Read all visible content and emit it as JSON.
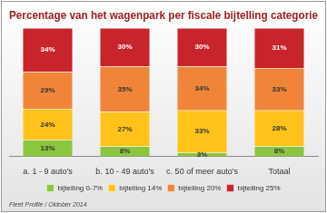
{
  "chart_data": {
    "type": "bar",
    "title": "Percentage van het wagenpark per fiscale bijtelling categorie",
    "annotation": "Fleet Profile / Oktober 2014",
    "categories": [
      "a. 1 - 9 auto's",
      "b. 10 - 49 auto's",
      "c. 50 of meer auto's",
      "Totaal"
    ],
    "series": [
      {
        "name": "bijtelling 0-7%",
        "color": "#8cc63e",
        "values": [
          13,
          8,
          3,
          8
        ],
        "value_labels": [
          "13%",
          "8%",
          "3%",
          "8%"
        ]
      },
      {
        "name": "bijtelling 14%",
        "color": "#ffc21a",
        "values": [
          24,
          27,
          33,
          28
        ],
        "value_labels": [
          "24%",
          "27%",
          "33%",
          "28%"
        ]
      },
      {
        "name": "bijtelling 20%",
        "color": "#f0853a",
        "values": [
          29,
          35,
          34,
          33
        ],
        "value_labels": [
          "29%",
          "35%",
          "34%",
          "33%"
        ]
      },
      {
        "name": "bijtelling 25%",
        "color": "#c8242b",
        "values": [
          34,
          30,
          30,
          31
        ],
        "value_labels": [
          "34%",
          "30%",
          "30%",
          "31%"
        ]
      }
    ],
    "stacked": true,
    "data_labels": true,
    "tick_labels": "x",
    "legend": "bottom",
    "grid": false,
    "ylim": [
      0,
      100
    ]
  }
}
